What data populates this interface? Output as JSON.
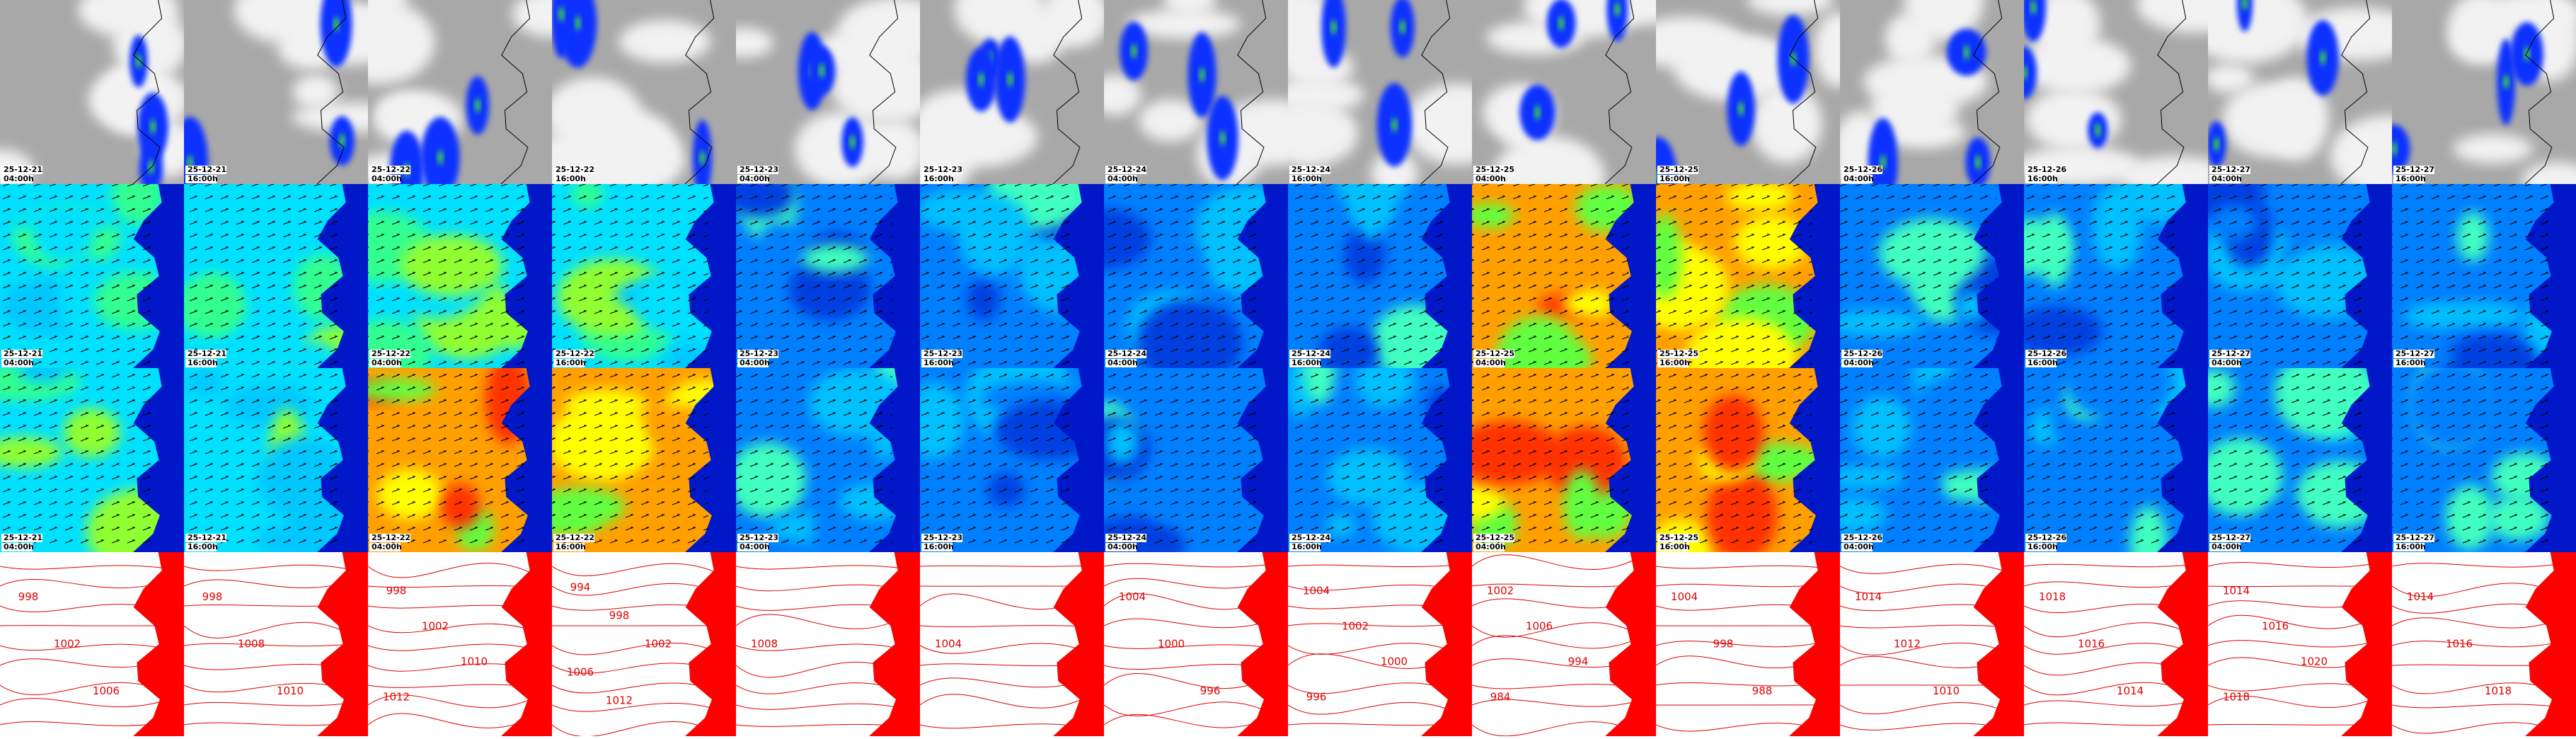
{
  "columns": [
    {
      "date": "25-12-21",
      "time": "04:00h",
      "isobars": [
        998,
        1002,
        1006
      ]
    },
    {
      "date": "25-12-21",
      "time": "16:00h",
      "isobars": [
        998,
        1008,
        1010
      ]
    },
    {
      "date": "25-12-22",
      "time": "04:00h",
      "isobars": [
        998,
        1002,
        1010,
        1012
      ]
    },
    {
      "date": "25-12-22",
      "time": "16:00h",
      "isobars": [
        994,
        998,
        1002,
        1006,
        1012
      ]
    },
    {
      "date": "25-12-23",
      "time": "04:00h",
      "isobars": [
        1008
      ]
    },
    {
      "date": "25-12-23",
      "time": "16:00h",
      "isobars": [
        1004
      ]
    },
    {
      "date": "25-12-24",
      "time": "04:00h",
      "isobars": [
        1004,
        1000,
        996
      ]
    },
    {
      "date": "25-12-24",
      "time": "16:00h",
      "isobars": [
        1004,
        1002,
        1000,
        996
      ]
    },
    {
      "date": "25-12-25",
      "time": "04:00h",
      "isobars": [
        1002,
        1006,
        994,
        984
      ]
    },
    {
      "date": "25-12-25",
      "time": "16:00h",
      "isobars": [
        1004,
        998,
        988
      ]
    },
    {
      "date": "25-12-26",
      "time": "04:00h",
      "isobars": [
        1014,
        1012,
        1010
      ]
    },
    {
      "date": "25-12-26",
      "time": "16:00h",
      "isobars": [
        1018,
        1016,
        1014
      ]
    },
    {
      "date": "25-12-27",
      "time": "04:00h",
      "isobars": [
        1014,
        1016,
        1020,
        1018
      ]
    },
    {
      "date": "25-12-27",
      "time": "16:00h",
      "isobars": [
        1014,
        1016,
        1018
      ]
    }
  ]
}
